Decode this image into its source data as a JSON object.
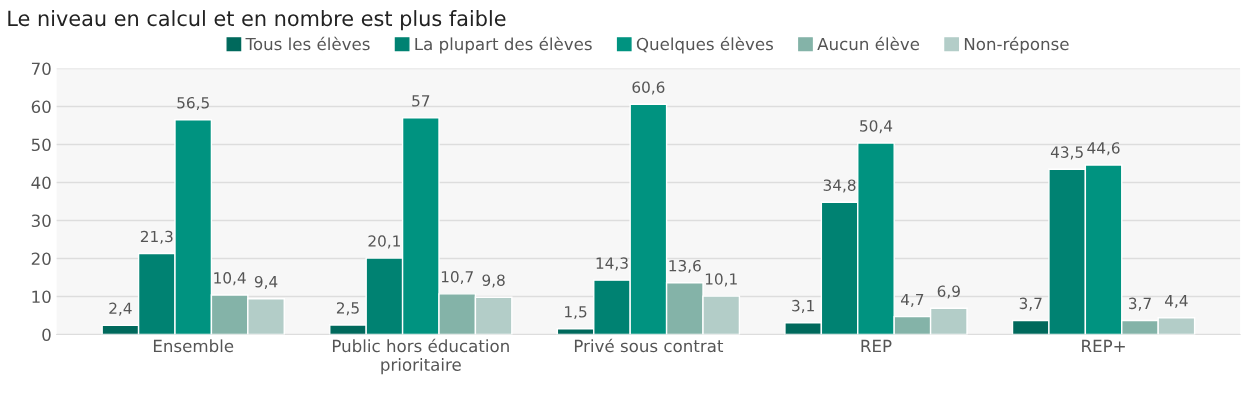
{
  "chart_data": {
    "type": "bar",
    "title": "Le niveau en calcul et en nombre est plus faible",
    "categories": [
      "Ensemble",
      "Public hors éducation\nprioritaire",
      "Privé sous contrat",
      "REP",
      "REP+"
    ],
    "series": [
      {
        "name": "Tous les élèves",
        "color": "#00695c",
        "values": [
          2.4,
          2.5,
          1.5,
          3.1,
          3.7
        ],
        "value_labels": [
          "2,4",
          "2,5",
          "1,5",
          "3,1",
          "3,7"
        ]
      },
      {
        "name": "La plupart des élèves",
        "color": "#008272",
        "values": [
          21.3,
          20.1,
          14.3,
          34.8,
          43.5
        ],
        "value_labels": [
          "21,3",
          "20,1",
          "14,3",
          "34,8",
          "43,5"
        ]
      },
      {
        "name": "Quelques élèves",
        "color": "#009380",
        "values": [
          56.5,
          57,
          60.6,
          50.4,
          44.6
        ],
        "value_labels": [
          "56,5",
          "57",
          "60,6",
          "50,4",
          "44,6"
        ]
      },
      {
        "name": "Aucun élève",
        "color": "#84b3a8",
        "values": [
          10.4,
          10.7,
          13.6,
          4.7,
          3.7
        ],
        "value_labels": [
          "10,4",
          "10,7",
          "13,6",
          "4,7",
          "3,7"
        ]
      },
      {
        "name": "Non-réponse",
        "color": "#b3cdc8",
        "values": [
          9.4,
          9.8,
          10.1,
          6.9,
          4.4
        ],
        "value_labels": [
          "9,4",
          "9,8",
          "10,1",
          "6,9",
          "4,4"
        ]
      }
    ],
    "ylim": [
      0,
      70
    ],
    "yticks": [
      0,
      10,
      20,
      30,
      40,
      50,
      60,
      70
    ],
    "grid": "y",
    "legend": "top"
  }
}
